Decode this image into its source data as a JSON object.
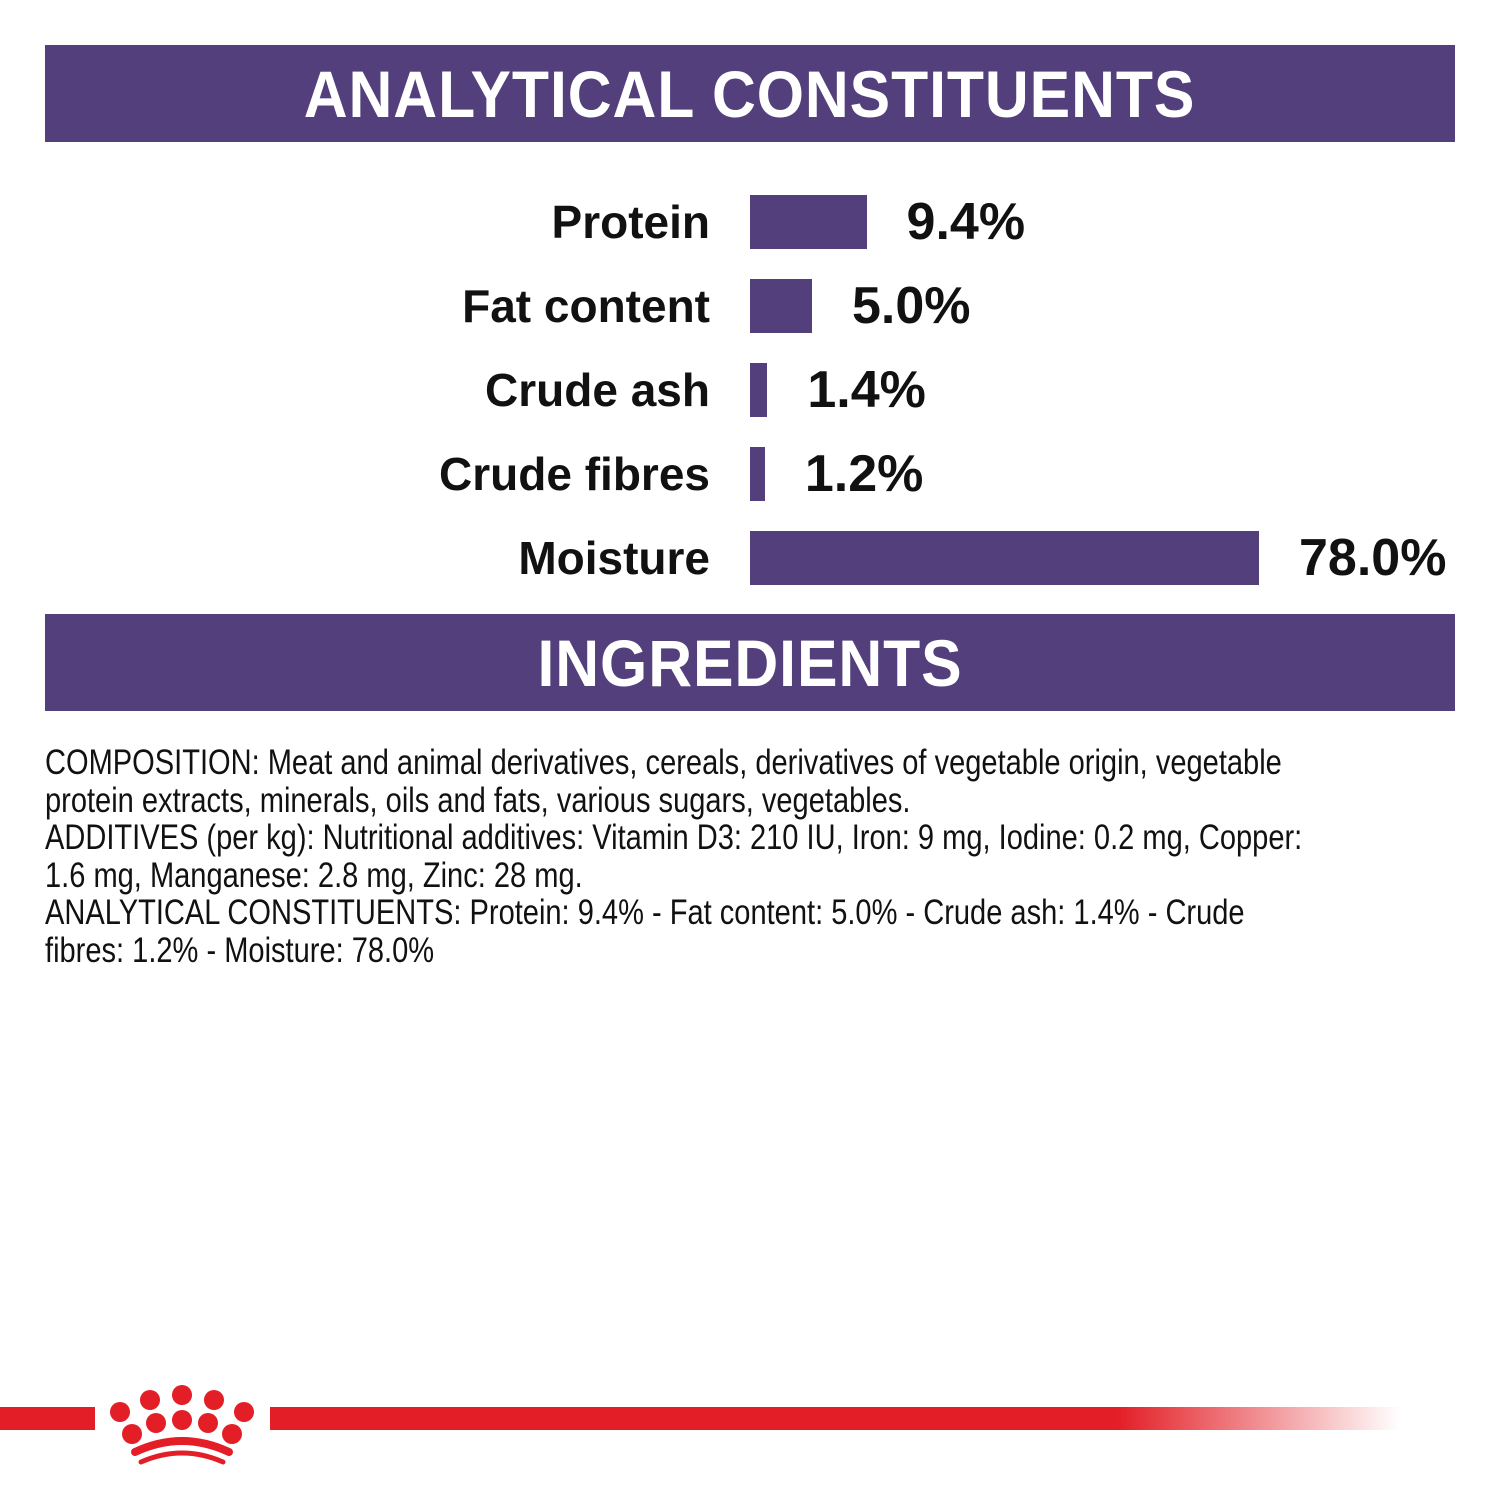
{
  "header": {
    "title": "ANALYTICAL CONSTITUENTS"
  },
  "ingredients_header": {
    "title": "INGREDIENTS"
  },
  "colors": {
    "accent": "#533f7c",
    "brand_red": "#e31e26"
  },
  "chart_data": {
    "type": "bar",
    "orientation": "horizontal",
    "title": "ANALYTICAL CONSTITUENTS",
    "categories": [
      "Protein",
      "Fat content",
      "Crude ash",
      "Crude fibres",
      "Moisture"
    ],
    "values": [
      9.4,
      5.0,
      1.4,
      1.2,
      78.0
    ],
    "labels": [
      "9.4%",
      "5.0%",
      "1.4%",
      "1.2%",
      "78.0%"
    ],
    "unit": "%",
    "grid": false
  },
  "ingredients": {
    "lines": [
      "COMPOSITION: Meat and animal derivatives, cereals, derivatives of vegetable origin, vegetable",
      "protein extracts, minerals, oils and fats, various sugars, vegetables.",
      "ADDITIVES (per kg): Nutritional additives: Vitamin D3: 210 IU, Iron: 9 mg, Iodine: 0.2 mg, Copper:",
      "1.6 mg, Manganese: 2.8 mg, Zinc: 28 mg.",
      "ANALYTICAL CONSTITUENTS: Protein: 9.4% - Fat content: 5.0% - Crude ash: 1.4% - Crude",
      "fibres: 1.2% - Moisture: 78.0%"
    ]
  },
  "footer": {
    "logo": "royal-canin-crown-logo"
  }
}
